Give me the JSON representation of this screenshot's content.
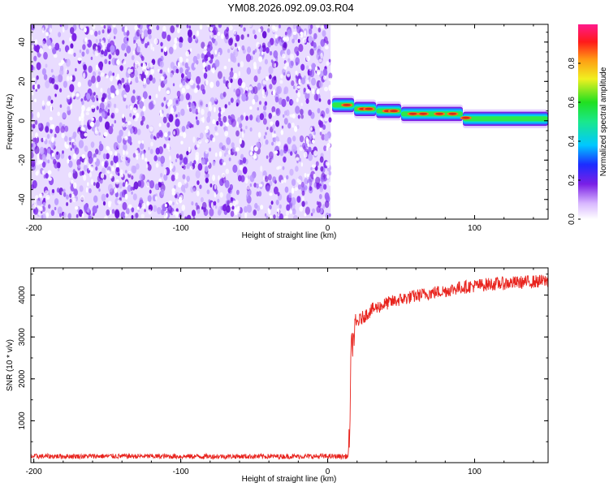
{
  "title": "YM08.2026.092.09.03.R04",
  "colors": {
    "noise": "#7a1fe6",
    "snr_line": "#e8231d",
    "band_core": "#d42a1c",
    "band_mid": "#2ee84a",
    "band_edge": "#1fb6ff"
  },
  "chart_data": [
    {
      "type": "heatmap",
      "name": "spectrogram",
      "xlabel": "Height of straight line (km)",
      "ylabel": "Frequency (Hz)",
      "xlim": [
        -202,
        150
      ],
      "ylim": [
        -50,
        49
      ],
      "xticks": [
        "-200",
        "-100",
        "0",
        "100"
      ],
      "yticks": [
        "40",
        "20",
        "0",
        "-20",
        "-40"
      ],
      "noise_region_x": [
        -202,
        2
      ],
      "band_segments": [
        {
          "x0": 3,
          "x1": 18,
          "freq": 8
        },
        {
          "x0": 18,
          "x1": 33,
          "freq": 6
        },
        {
          "x0": 33,
          "x1": 50,
          "freq": 5
        },
        {
          "x0": 50,
          "x1": 92,
          "freq": 3.5
        },
        {
          "x0": 92,
          "x1": 150,
          "freq": 1
        }
      ],
      "colorbar": {
        "label": "Normalized spectral amplitude",
        "ticks": [
          "0.0",
          "0.2",
          "0.4",
          "0.6",
          "0.8"
        ],
        "range": [
          0,
          1
        ]
      }
    },
    {
      "type": "line",
      "name": "snr",
      "xlabel": "Height of straight line (km)",
      "ylabel": "SNR (10 * v/v)",
      "xlim": [
        -202,
        150
      ],
      "ylim": [
        0,
        4650
      ],
      "xticks": [
        "-200",
        "-100",
        "0",
        "100"
      ],
      "yticks": [
        "4000",
        "3000",
        "2000",
        "1000"
      ],
      "series": [
        {
          "name": "SNR",
          "x": [
            -202,
            -150,
            -100,
            -50,
            0,
            14,
            15,
            16,
            18,
            20,
            25,
            30,
            40,
            50,
            60,
            70,
            80,
            90,
            100,
            110,
            120,
            130,
            140,
            150
          ],
          "y": [
            150,
            155,
            150,
            150,
            150,
            150,
            800,
            2700,
            3050,
            3350,
            3500,
            3650,
            3800,
            3900,
            3980,
            4050,
            4100,
            4180,
            4220,
            4260,
            4280,
            4300,
            4320,
            4340
          ]
        }
      ]
    }
  ]
}
